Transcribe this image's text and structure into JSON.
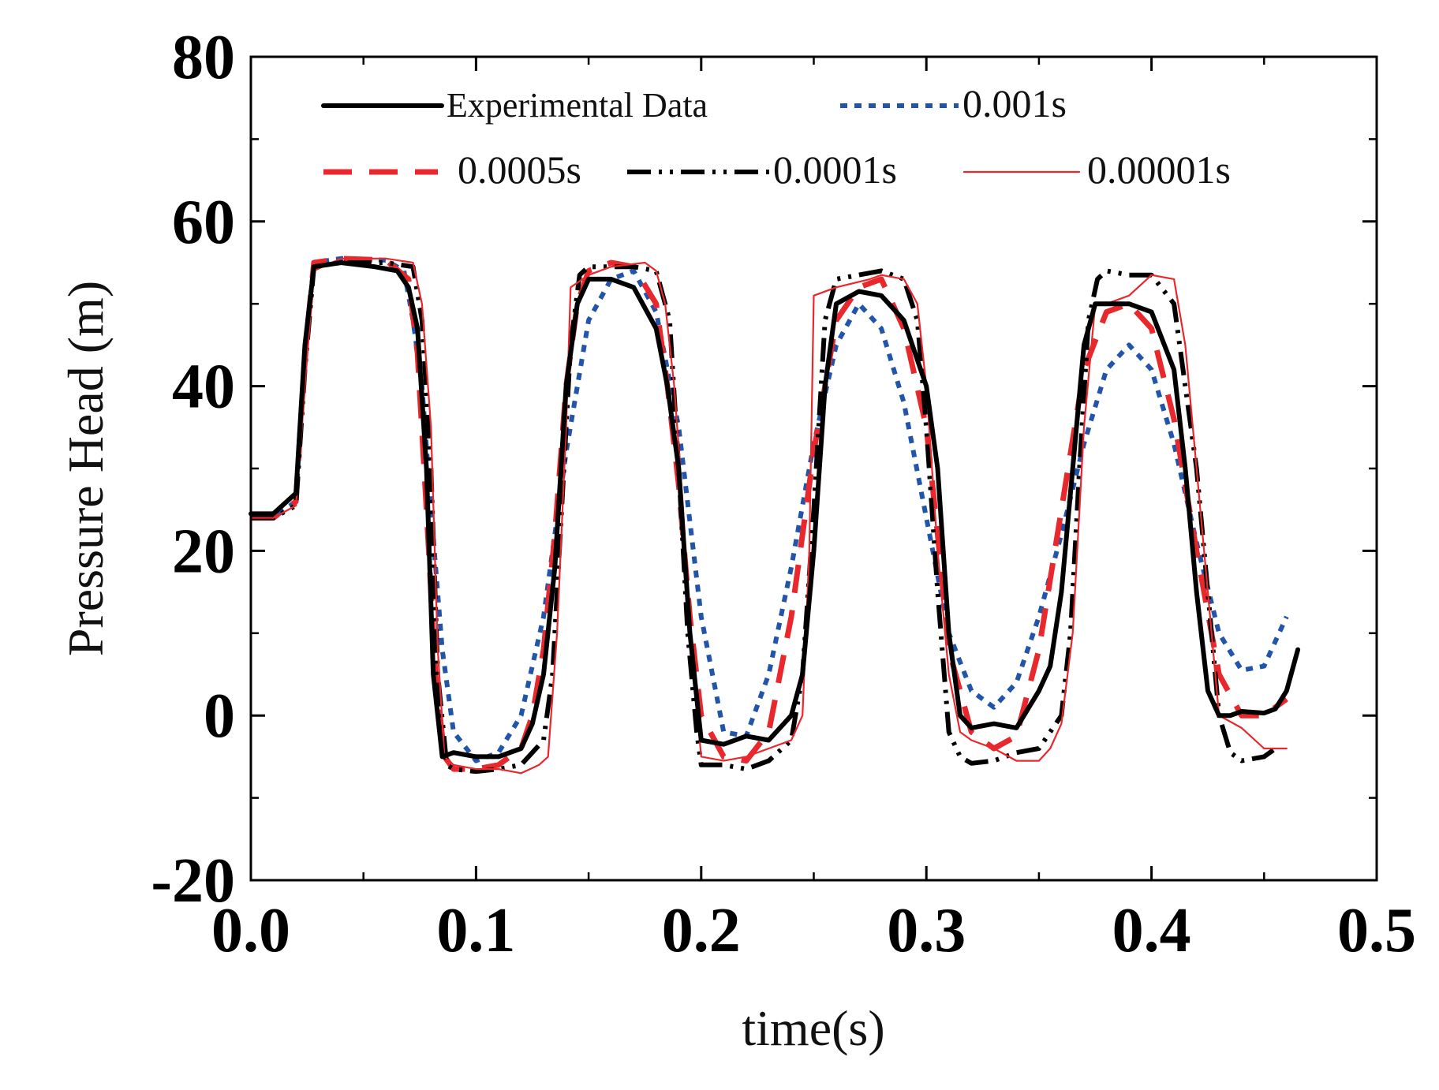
{
  "chart_data": {
    "type": "line",
    "title": "",
    "xlabel": "time(s)",
    "ylabel": "Pressure Head (m)",
    "xlim": [
      0.0,
      0.5
    ],
    "ylim": [
      -20,
      80
    ],
    "xticks": [
      "0.0",
      "0.1",
      "0.2",
      "0.3",
      "0.4",
      "0.5"
    ],
    "yticks": [
      "-20",
      "0",
      "20",
      "40",
      "60",
      "80"
    ],
    "xtick_values": [
      0.0,
      0.1,
      0.2,
      0.3,
      0.4,
      0.5
    ],
    "ytick_values": [
      -20,
      0,
      20,
      40,
      60,
      80
    ],
    "grid": false,
    "legend_position": "top",
    "series": [
      {
        "name": "Experimental Data",
        "color": "#000000",
        "style": "solid-thick",
        "x": [
          0.0,
          0.01,
          0.02,
          0.024,
          0.028,
          0.04,
          0.055,
          0.065,
          0.07,
          0.074,
          0.078,
          0.081,
          0.085,
          0.09,
          0.1,
          0.11,
          0.12,
          0.125,
          0.13,
          0.135,
          0.14,
          0.145,
          0.15,
          0.16,
          0.17,
          0.18,
          0.185,
          0.19,
          0.195,
          0.2,
          0.21,
          0.22,
          0.23,
          0.24,
          0.245,
          0.25,
          0.255,
          0.26,
          0.27,
          0.28,
          0.29,
          0.3,
          0.305,
          0.31,
          0.315,
          0.32,
          0.33,
          0.34,
          0.35,
          0.355,
          0.36,
          0.365,
          0.37,
          0.375,
          0.38,
          0.39,
          0.4,
          0.41,
          0.415,
          0.42,
          0.425,
          0.43,
          0.435,
          0.44,
          0.45,
          0.455,
          0.46,
          0.465
        ],
        "values": [
          24.5,
          24.5,
          27,
          45,
          54.5,
          55,
          54.5,
          54,
          52,
          47,
          30,
          5,
          -5,
          -4.5,
          -5,
          -5,
          -4,
          -1,
          5,
          18,
          40,
          50,
          53,
          53,
          52,
          47,
          40,
          30,
          10,
          -3,
          -3.5,
          -2.5,
          -3,
          0,
          5,
          20,
          40,
          50,
          51.5,
          51,
          48,
          40,
          30,
          10,
          0,
          -1.5,
          -1,
          -1.5,
          3,
          6,
          15,
          30,
          45,
          50,
          50,
          50,
          49,
          42,
          30,
          15,
          3,
          0,
          0,
          0.5,
          0.3,
          0.8,
          3,
          8
        ]
      },
      {
        "name": "0.001s",
        "color": "#2255aa",
        "style": "dotted",
        "x": [
          0.0,
          0.01,
          0.02,
          0.024,
          0.028,
          0.04,
          0.06,
          0.068,
          0.072,
          0.076,
          0.08,
          0.085,
          0.09,
          0.1,
          0.11,
          0.12,
          0.13,
          0.14,
          0.15,
          0.16,
          0.17,
          0.18,
          0.19,
          0.2,
          0.21,
          0.22,
          0.23,
          0.24,
          0.25,
          0.26,
          0.27,
          0.28,
          0.29,
          0.3,
          0.31,
          0.32,
          0.33,
          0.34,
          0.35,
          0.36,
          0.37,
          0.38,
          0.39,
          0.4,
          0.41,
          0.42,
          0.43,
          0.44,
          0.45,
          0.46
        ],
        "values": [
          24,
          24,
          26,
          44,
          55,
          55.5,
          55.3,
          54,
          48,
          40,
          25,
          8,
          -2,
          -5.5,
          -4.5,
          0,
          12,
          32,
          48,
          53,
          54,
          49,
          35,
          12,
          -2,
          -2.5,
          5,
          18,
          33,
          45,
          50,
          47,
          38,
          24,
          10,
          3,
          1,
          4,
          12,
          22,
          33,
          42,
          45,
          42,
          33,
          21,
          10,
          5.5,
          6,
          12
        ]
      },
      {
        "name": "0.0005s",
        "color": "#e8282c",
        "style": "dashed",
        "x": [
          0.0,
          0.01,
          0.02,
          0.024,
          0.028,
          0.04,
          0.06,
          0.07,
          0.074,
          0.078,
          0.082,
          0.086,
          0.09,
          0.1,
          0.11,
          0.12,
          0.125,
          0.13,
          0.135,
          0.14,
          0.145,
          0.15,
          0.16,
          0.17,
          0.18,
          0.185,
          0.19,
          0.195,
          0.2,
          0.21,
          0.22,
          0.23,
          0.24,
          0.25,
          0.26,
          0.27,
          0.28,
          0.29,
          0.3,
          0.305,
          0.31,
          0.32,
          0.33,
          0.34,
          0.35,
          0.36,
          0.37,
          0.38,
          0.39,
          0.4,
          0.41,
          0.42,
          0.43,
          0.44,
          0.45,
          0.46
        ],
        "values": [
          24,
          24,
          26,
          44,
          55,
          55.5,
          55.3,
          53,
          44,
          25,
          5,
          -5,
          -6.5,
          -6.5,
          -6,
          -4,
          0,
          8,
          22,
          40,
          50,
          54,
          55,
          54.5,
          50,
          40,
          28,
          12,
          0,
          -5,
          -5.5,
          -2,
          12,
          32,
          48,
          52,
          53,
          47,
          35,
          22,
          8,
          -2,
          -4,
          -2.5,
          8,
          25,
          42,
          49,
          50,
          47,
          36,
          20,
          5,
          0,
          0,
          2
        ]
      },
      {
        "name": "0.0001s",
        "color": "#000000",
        "style": "dashdot",
        "x": [
          0.0,
          0.01,
          0.02,
          0.024,
          0.028,
          0.04,
          0.06,
          0.072,
          0.076,
          0.08,
          0.083,
          0.087,
          0.09,
          0.1,
          0.11,
          0.12,
          0.13,
          0.134,
          0.138,
          0.142,
          0.146,
          0.15,
          0.17,
          0.18,
          0.186,
          0.19,
          0.194,
          0.198,
          0.2,
          0.21,
          0.22,
          0.23,
          0.24,
          0.245,
          0.25,
          0.255,
          0.26,
          0.28,
          0.29,
          0.296,
          0.3,
          0.305,
          0.31,
          0.315,
          0.32,
          0.33,
          0.34,
          0.35,
          0.36,
          0.364,
          0.368,
          0.372,
          0.376,
          0.38,
          0.39,
          0.4,
          0.41,
          0.415,
          0.42,
          0.425,
          0.43,
          0.435,
          0.44,
          0.45,
          0.455
        ],
        "values": [
          24,
          24,
          25.5,
          42,
          54.5,
          55,
          55,
          54.5,
          48,
          30,
          5,
          -6,
          -6.5,
          -6.8,
          -6.5,
          -6,
          -3,
          5,
          25,
          45,
          53.5,
          54.5,
          54.5,
          54,
          48,
          30,
          10,
          -2,
          -6,
          -6,
          -6.5,
          -5.5,
          -3,
          5,
          25,
          48,
          53,
          54,
          53,
          48,
          35,
          15,
          -2,
          -5,
          -5.8,
          -5.5,
          -4.5,
          -4,
          0,
          10,
          30,
          48,
          53,
          54,
          53.5,
          53.5,
          50,
          40,
          30,
          15,
          0,
          -4.5,
          -5.5,
          -5,
          -4
        ]
      },
      {
        "name": "0.00001s",
        "color": "#e8282c",
        "style": "solid-thin",
        "x": [
          0.0,
          0.01,
          0.02,
          0.024,
          0.028,
          0.04,
          0.06,
          0.072,
          0.076,
          0.08,
          0.083,
          0.086,
          0.09,
          0.1,
          0.11,
          0.12,
          0.124,
          0.128,
          0.132,
          0.136,
          0.14,
          0.142,
          0.15,
          0.16,
          0.175,
          0.18,
          0.184,
          0.188,
          0.192,
          0.195,
          0.2,
          0.21,
          0.22,
          0.23,
          0.24,
          0.245,
          0.248,
          0.25,
          0.26,
          0.275,
          0.28,
          0.29,
          0.296,
          0.3,
          0.305,
          0.31,
          0.315,
          0.32,
          0.33,
          0.34,
          0.35,
          0.355,
          0.36,
          0.365,
          0.37,
          0.375,
          0.38,
          0.39,
          0.4,
          0.41,
          0.415,
          0.42,
          0.425,
          0.43,
          0.44,
          0.45,
          0.46
        ],
        "values": [
          24,
          24,
          25.5,
          40,
          54,
          55.5,
          55.5,
          55,
          50,
          35,
          8,
          -5,
          -6,
          -6.5,
          -6.5,
          -7,
          -6.5,
          -6,
          -5,
          10,
          35,
          52,
          53.5,
          54.5,
          55,
          54,
          50,
          40,
          25,
          10,
          -5,
          -5.5,
          -5,
          -4,
          -3,
          0,
          20,
          51,
          52,
          53,
          53.5,
          53,
          50,
          40,
          20,
          5,
          -2,
          -3,
          -4,
          -5.5,
          -5.5,
          -4,
          -1,
          10,
          35,
          50,
          50,
          51,
          53.5,
          53,
          45,
          30,
          15,
          0,
          -1.5,
          -4,
          -4
        ]
      }
    ]
  }
}
